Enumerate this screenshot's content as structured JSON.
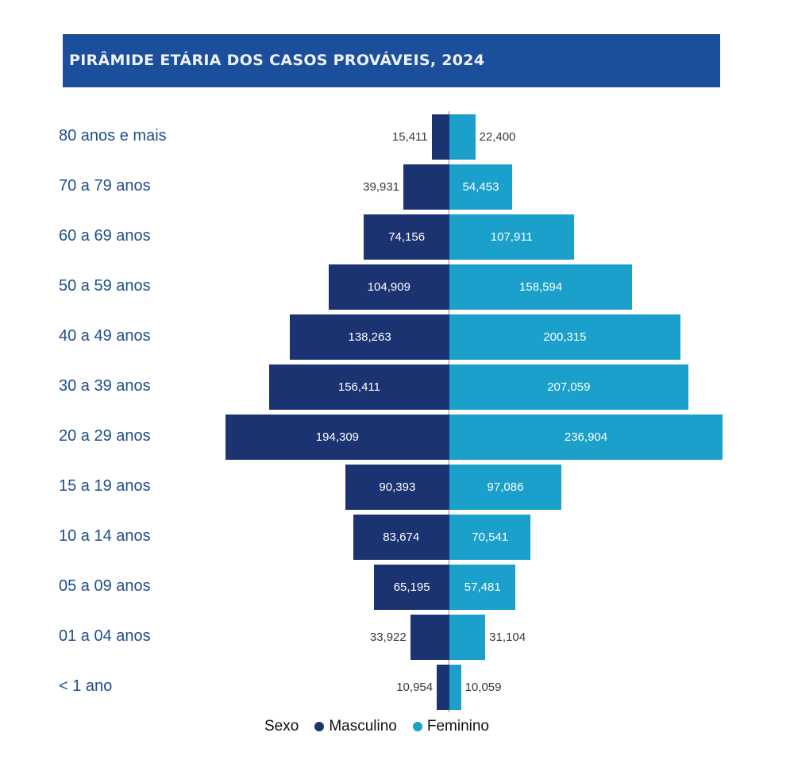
{
  "chart_data": {
    "type": "bar",
    "orientation": "horizontal-pyramid",
    "title": "PIRÂMIDE ETÁRIA DOS CASOS PROVÁVEIS, 2024",
    "categories": [
      "80 anos e mais",
      "70 a 79 anos",
      "60 a 69 anos",
      "50 a 59 anos",
      "40 a 49 anos",
      "30 a 39 anos",
      "20 a 29 anos",
      "15 a 19 anos",
      "10 a 14 anos",
      "05 a 09 anos",
      "01 a 04 anos",
      "< 1 ano"
    ],
    "series": [
      {
        "name": "Masculino",
        "color": "#1c3371",
        "values": [
          15411,
          39931,
          74156,
          104909,
          138263,
          156411,
          194309,
          90393,
          83674,
          65195,
          33922,
          10954
        ],
        "labels": [
          "15,411",
          "39,931",
          "74,156",
          "104,909",
          "138,263",
          "156,411",
          "194,309",
          "90,393",
          "83,674",
          "65,195",
          "33,922",
          "10,954"
        ]
      },
      {
        "name": "Feminino",
        "color": "#1aa0cb",
        "values": [
          22400,
          54453,
          107911,
          158594,
          200315,
          207059,
          236904,
          97086,
          70541,
          57481,
          31104,
          10059
        ],
        "labels": [
          "22,400",
          "54,453",
          "107,911",
          "158,594",
          "200,315",
          "207,059",
          "236,904",
          "97,086",
          "70,541",
          "57,481",
          "31,104",
          "10,059"
        ]
      }
    ],
    "legend": {
      "title": "Sexo",
      "placement": "bottom-center"
    }
  }
}
